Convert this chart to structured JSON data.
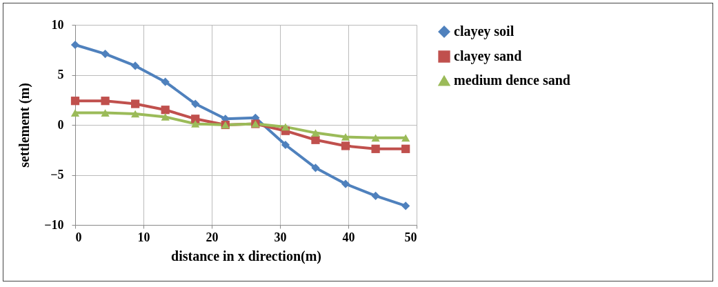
{
  "chart_data": {
    "type": "line",
    "xlabel": "distance in x direction(m)",
    "ylabel": "settlement (m)",
    "x": [
      0,
      4.4,
      8.8,
      13.2,
      17.6,
      22,
      26.4,
      30.8,
      35.2,
      39.6,
      44,
      48.4
    ],
    "xlim": [
      0,
      50
    ],
    "xticks": [
      0,
      10,
      20,
      30,
      40,
      50
    ],
    "ylim": [
      -10,
      10
    ],
    "yticks": [
      -10,
      -5,
      0,
      5,
      10
    ],
    "grid": true,
    "legend": "right",
    "line_style": "solid",
    "series": [
      {
        "name": "clayey soil",
        "color": "#4f81bd",
        "marker": "diamond",
        "values": [
          8.0,
          7.1,
          5.9,
          4.3,
          2.1,
          0.6,
          0.7,
          -2.0,
          -4.3,
          -5.9,
          -7.1,
          -8.1
        ]
      },
      {
        "name": "clayey sand",
        "color": "#c0504d",
        "marker": "square",
        "values": [
          2.4,
          2.4,
          2.1,
          1.5,
          0.6,
          0.0,
          0.1,
          -0.6,
          -1.5,
          -2.1,
          -2.4,
          -2.4
        ]
      },
      {
        "name": "medium dence sand",
        "color": "#9bbb59",
        "marker": "triangle",
        "values": [
          1.2,
          1.2,
          1.1,
          0.8,
          0.1,
          0.0,
          0.1,
          -0.2,
          -0.8,
          -1.2,
          -1.3,
          -1.3
        ]
      }
    ]
  }
}
